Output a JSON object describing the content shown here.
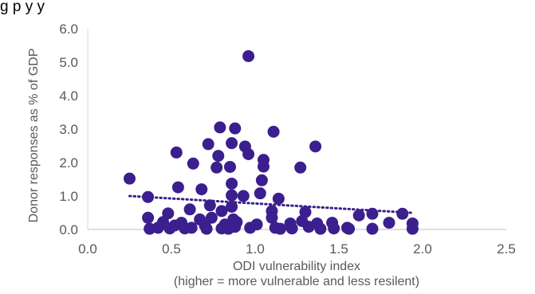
{
  "chart_data": {
    "type": "scatter",
    "title": "g                              p                              y                    y",
    "xlabel": "ODI vulnerability index",
    "xlabel_note": "(higher = more vulnerable and less resilent)",
    "ylabel": "Donor responses as % of GDP",
    "xlim": [
      0.0,
      2.5
    ],
    "ylim": [
      0.0,
      6.0
    ],
    "x_ticks": [
      "0.0",
      "0.5",
      "1.0",
      "1.5",
      "2.0",
      "2.5"
    ],
    "y_ticks": [
      "0.0",
      "1.0",
      "2.0",
      "3.0",
      "4.0",
      "5.0",
      "6.0"
    ],
    "grid": false,
    "legend": "none",
    "marker_color": "#3b1f8e",
    "trendline": {
      "style": "dotted",
      "color": "#3b1f8e",
      "x": [
        0.25,
        1.93
      ],
      "y": [
        1.0,
        0.5
      ]
    },
    "points": [
      {
        "x": 0.25,
        "y": 1.52
      },
      {
        "x": 0.36,
        "y": 0.97
      },
      {
        "x": 0.36,
        "y": 0.35
      },
      {
        "x": 0.37,
        "y": 0.02
      },
      {
        "x": 0.42,
        "y": 0.05
      },
      {
        "x": 0.45,
        "y": 0.22
      },
      {
        "x": 0.48,
        "y": 0.48
      },
      {
        "x": 0.49,
        "y": 0.03
      },
      {
        "x": 0.52,
        "y": 0.12
      },
      {
        "x": 0.53,
        "y": 2.3
      },
      {
        "x": 0.54,
        "y": 1.26
      },
      {
        "x": 0.56,
        "y": 0.2
      },
      {
        "x": 0.58,
        "y": 0.03
      },
      {
        "x": 0.61,
        "y": 0.6
      },
      {
        "x": 0.62,
        "y": 0.05
      },
      {
        "x": 0.63,
        "y": 1.97
      },
      {
        "x": 0.67,
        "y": 0.3
      },
      {
        "x": 0.68,
        "y": 1.2
      },
      {
        "x": 0.7,
        "y": 0.12
      },
      {
        "x": 0.71,
        "y": 0.02
      },
      {
        "x": 0.72,
        "y": 2.55
      },
      {
        "x": 0.73,
        "y": 0.72
      },
      {
        "x": 0.74,
        "y": 0.35
      },
      {
        "x": 0.77,
        "y": 1.85
      },
      {
        "x": 0.78,
        "y": 2.2
      },
      {
        "x": 0.79,
        "y": 3.05
      },
      {
        "x": 0.8,
        "y": 0.55
      },
      {
        "x": 0.8,
        "y": 0.03
      },
      {
        "x": 0.82,
        "y": 0.15
      },
      {
        "x": 0.84,
        "y": 0.02
      },
      {
        "x": 0.85,
        "y": 1.87
      },
      {
        "x": 0.86,
        "y": 2.58
      },
      {
        "x": 0.86,
        "y": 1.37
      },
      {
        "x": 0.86,
        "y": 1.02
      },
      {
        "x": 0.86,
        "y": 0.68
      },
      {
        "x": 0.87,
        "y": 0.3
      },
      {
        "x": 0.88,
        "y": 3.02
      },
      {
        "x": 0.88,
        "y": 0.08
      },
      {
        "x": 0.89,
        "y": 0.22
      },
      {
        "x": 0.93,
        "y": 1.0
      },
      {
        "x": 0.94,
        "y": 2.48
      },
      {
        "x": 0.96,
        "y": 5.18
      },
      {
        "x": 0.96,
        "y": 2.25
      },
      {
        "x": 0.97,
        "y": 0.05
      },
      {
        "x": 1.01,
        "y": 0.15
      },
      {
        "x": 1.03,
        "y": 1.08
      },
      {
        "x": 1.04,
        "y": 1.47
      },
      {
        "x": 1.05,
        "y": 1.88
      },
      {
        "x": 1.05,
        "y": 2.08
      },
      {
        "x": 1.1,
        "y": 0.55
      },
      {
        "x": 1.1,
        "y": 0.35
      },
      {
        "x": 1.11,
        "y": 2.92
      },
      {
        "x": 1.12,
        "y": 0.05
      },
      {
        "x": 1.14,
        "y": 0.92
      },
      {
        "x": 1.15,
        "y": 0.02
      },
      {
        "x": 1.21,
        "y": 0.18
      },
      {
        "x": 1.22,
        "y": 0.03
      },
      {
        "x": 1.27,
        "y": 1.85
      },
      {
        "x": 1.28,
        "y": 0.25
      },
      {
        "x": 1.3,
        "y": 0.52
      },
      {
        "x": 1.32,
        "y": 0.08
      },
      {
        "x": 1.36,
        "y": 2.48
      },
      {
        "x": 1.37,
        "y": 0.18
      },
      {
        "x": 1.39,
        "y": 0.02
      },
      {
        "x": 1.46,
        "y": 0.2
      },
      {
        "x": 1.47,
        "y": 0.03
      },
      {
        "x": 1.55,
        "y": 0.05
      },
      {
        "x": 1.56,
        "y": 0.02
      },
      {
        "x": 1.62,
        "y": 0.42
      },
      {
        "x": 1.7,
        "y": 0.47
      },
      {
        "x": 1.7,
        "y": 0.02
      },
      {
        "x": 1.8,
        "y": 0.2
      },
      {
        "x": 1.88,
        "y": 0.47
      },
      {
        "x": 1.94,
        "y": 0.18
      },
      {
        "x": 1.94,
        "y": 0.02
      }
    ]
  }
}
